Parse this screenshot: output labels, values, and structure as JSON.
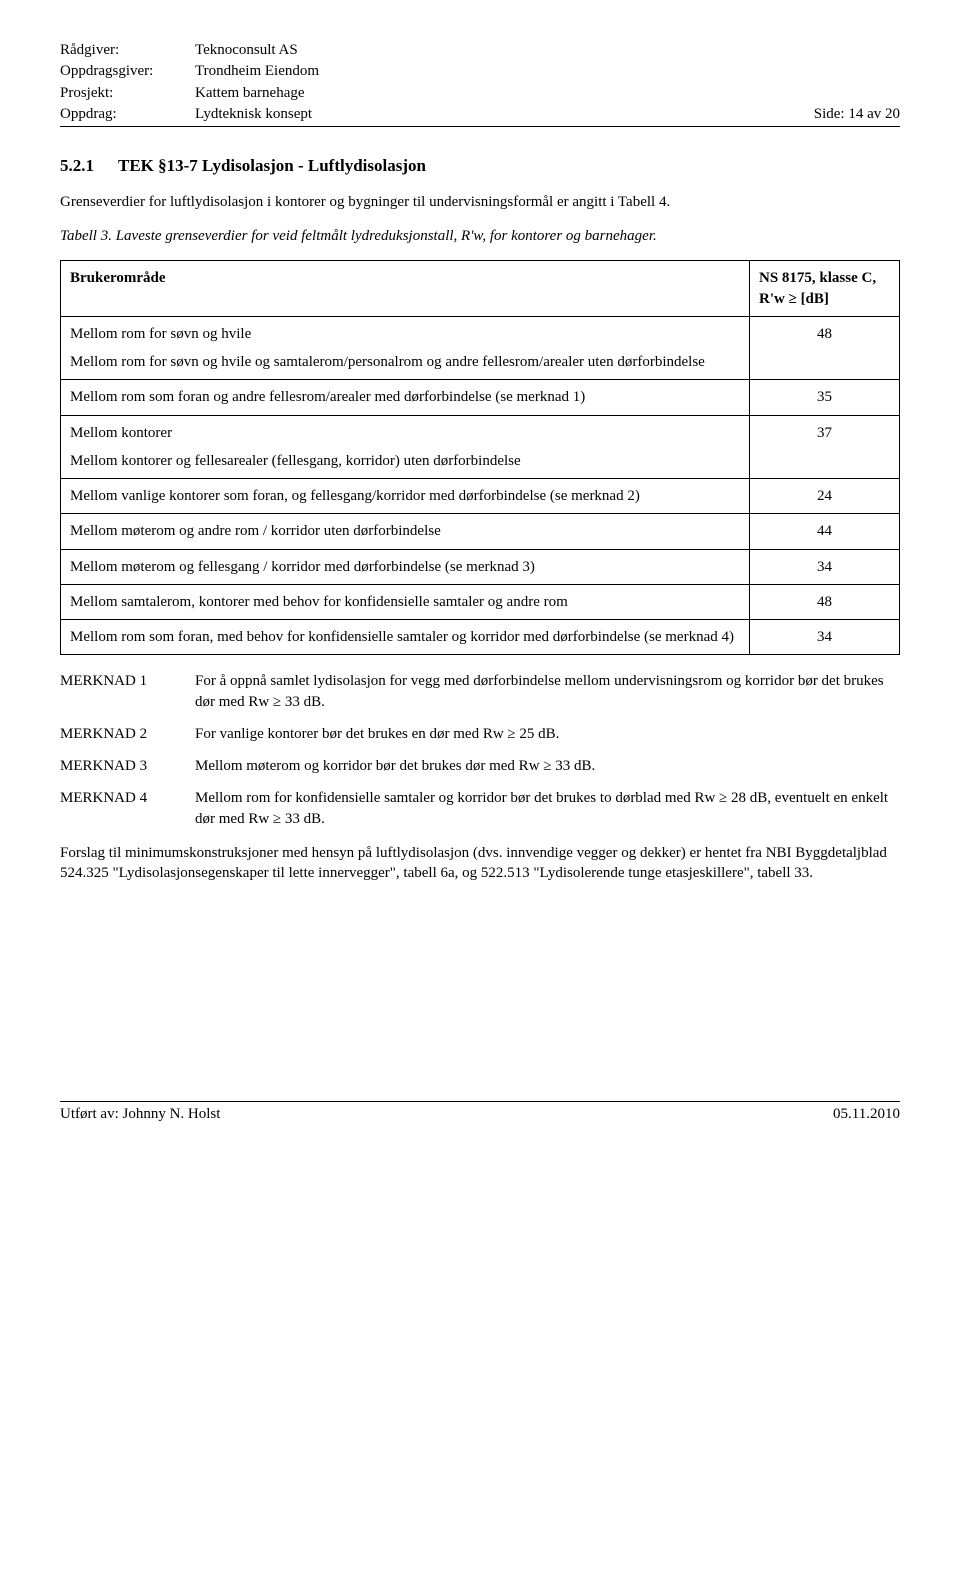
{
  "header": {
    "labels": {
      "advisor": "Rådgiver:",
      "client": "Oppdragsgiver:",
      "project": "Prosjekt:",
      "assignment": "Oppdrag:"
    },
    "values": {
      "advisor": "Teknoconsult AS",
      "client": "Trondheim Eiendom",
      "project": "Kattem barnehage",
      "assignment": "Lydteknisk konsept"
    },
    "side": "Side: 14 av 20"
  },
  "section": {
    "number": "5.2.1",
    "title": "TEK §13-7 Lydisolasjon - Luftlydisolasjon"
  },
  "intro": "Grenseverdier for luftlydisolasjon i kontorer og bygninger til undervisningsformål er angitt i Tabell 4.",
  "caption": "Tabell 3. Laveste grenseverdier for veid feltmålt lydreduksjonstall, R'w, for kontorer og barnehager.",
  "table": {
    "head_left": "Brukerområde",
    "head_right": "NS 8175, klasse C, R'w ≥ [dB]",
    "rows": [
      {
        "desc": "Mellom rom for søvn og hvile\nMellom rom for søvn og hvile og samtalerom/personalrom og andre fellesrom/arealer uten dørforbindelse",
        "val": "48"
      },
      {
        "desc": "Mellom rom som foran og andre fellesrom/arealer med dørforbindelse (se merknad 1)",
        "val": "35"
      },
      {
        "desc": "Mellom kontorer\nMellom kontorer og fellesarealer (fellesgang, korridor) uten dørforbindelse",
        "val": "37"
      },
      {
        "desc": "Mellom vanlige kontorer som foran, og fellesgang/korridor med dørforbindelse (se merknad 2)",
        "val": "24"
      },
      {
        "desc": "Mellom møterom og andre rom / korridor uten dørforbindelse",
        "val": "44"
      },
      {
        "desc": "Mellom møterom og fellesgang / korridor med dørforbindelse (se merknad 3)",
        "val": "34"
      },
      {
        "desc": "Mellom samtalerom, kontorer med behov for konfidensielle samtaler og andre rom",
        "val": "48"
      },
      {
        "desc": "Mellom rom som foran, med behov for konfidensielle samtaler og korridor med dørforbindelse (se merknad 4)",
        "val": "34"
      }
    ]
  },
  "remarks": [
    {
      "key": "MERKNAD 1",
      "text": "For å oppnå samlet lydisolasjon for vegg med dørforbindelse mellom undervisningsrom og korridor bør det brukes dør med Rw ≥ 33 dB."
    },
    {
      "key": "MERKNAD 2",
      "text": "For vanlige kontorer bør det brukes en dør med Rw ≥ 25 dB."
    },
    {
      "key": "MERKNAD 3",
      "text": "Mellom møterom og korridor bør det brukes dør med Rw ≥ 33 dB."
    },
    {
      "key": "MERKNAD 4",
      "text": "Mellom rom for konfidensielle samtaler og korridor bør det brukes to dørblad med Rw ≥ 28 dB, eventuelt en enkelt dør med Rw ≥ 33 dB."
    }
  ],
  "closing": "Forslag til minimumskonstruksjoner med hensyn på luftlydisolasjon (dvs. innvendige vegger og dekker) er hentet fra NBI Byggdetaljblad 524.325 \"Lydisolasjonsegenskaper til lette innervegger\", tabell 6a, og 522.513 \"Lydisolerende tunge etasjeskillere\", tabell 33.",
  "footer": {
    "left": "Utført av: Johnny N. Holst",
    "right": "05.11.2010"
  }
}
